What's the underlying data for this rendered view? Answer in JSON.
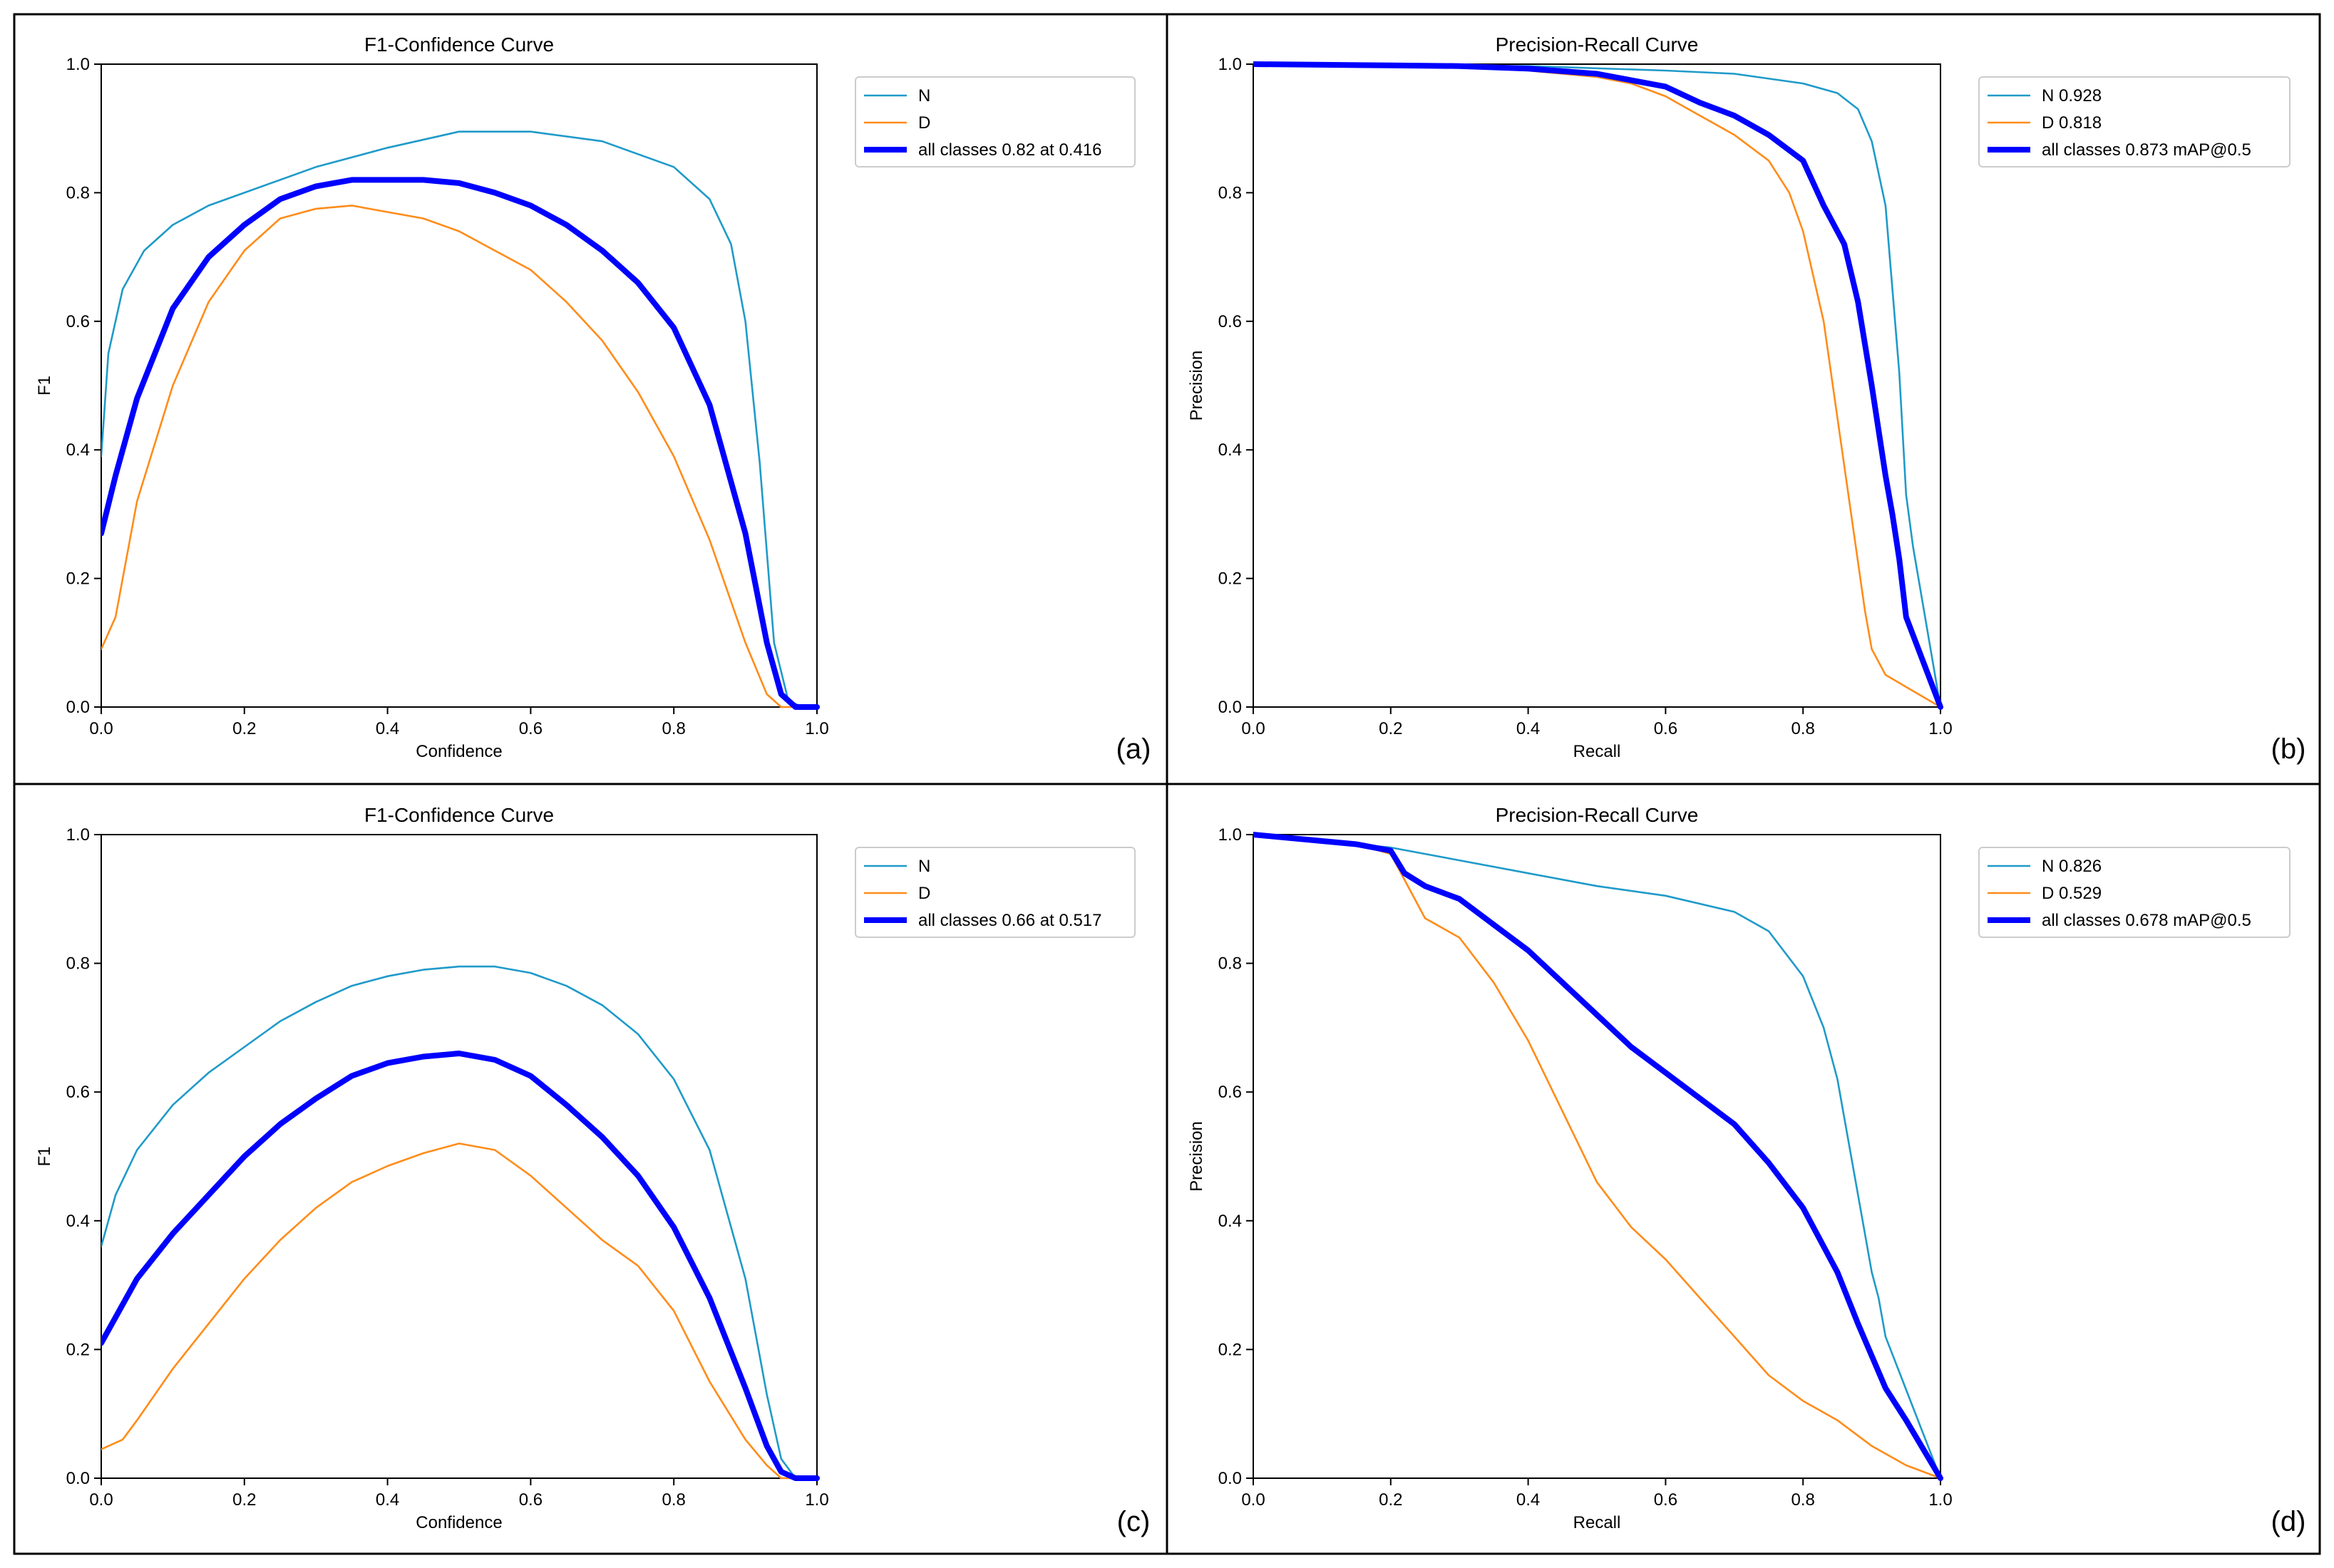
{
  "chart_data": [
    {
      "type": "line",
      "panel_label": "(a)",
      "title": "F1-Confidence Curve",
      "xlabel": "Confidence",
      "ylabel": "F1",
      "xlim": [
        0,
        1
      ],
      "ylim": [
        0,
        1
      ],
      "xticks": [
        "0.0",
        "0.2",
        "0.4",
        "0.6",
        "0.8",
        "1.0"
      ],
      "yticks": [
        "0.0",
        "0.2",
        "0.4",
        "0.6",
        "0.8",
        "1.0"
      ],
      "legend_position": "outside-right-top",
      "series": [
        {
          "name": "N",
          "color": "#1f9ac9",
          "style": "thin",
          "x": [
            0,
            0.01,
            0.03,
            0.06,
            0.1,
            0.15,
            0.2,
            0.3,
            0.4,
            0.5,
            0.6,
            0.7,
            0.8,
            0.85,
            0.88,
            0.9,
            0.92,
            0.94,
            0.96,
            0.98,
            1.0
          ],
          "y": [
            0.39,
            0.55,
            0.65,
            0.71,
            0.75,
            0.78,
            0.8,
            0.84,
            0.87,
            0.895,
            0.895,
            0.88,
            0.84,
            0.79,
            0.72,
            0.6,
            0.38,
            0.1,
            0.01,
            0.0,
            0.0
          ]
        },
        {
          "name": "D",
          "color": "#ff8c1a",
          "style": "thin",
          "x": [
            0,
            0.02,
            0.05,
            0.1,
            0.15,
            0.2,
            0.25,
            0.3,
            0.35,
            0.4,
            0.45,
            0.5,
            0.55,
            0.6,
            0.65,
            0.7,
            0.75,
            0.8,
            0.85,
            0.9,
            0.93,
            0.95,
            1.0
          ],
          "y": [
            0.09,
            0.14,
            0.32,
            0.5,
            0.63,
            0.71,
            0.76,
            0.775,
            0.78,
            0.77,
            0.76,
            0.74,
            0.71,
            0.68,
            0.63,
            0.57,
            0.49,
            0.39,
            0.26,
            0.1,
            0.02,
            0.0,
            0.0
          ]
        },
        {
          "name": "all classes 0.82 at 0.416",
          "color": "#0000ff",
          "style": "thick",
          "x": [
            0,
            0.02,
            0.05,
            0.1,
            0.15,
            0.2,
            0.25,
            0.3,
            0.35,
            0.4,
            0.45,
            0.5,
            0.55,
            0.6,
            0.65,
            0.7,
            0.75,
            0.8,
            0.85,
            0.9,
            0.93,
            0.95,
            0.97,
            1.0
          ],
          "y": [
            0.27,
            0.36,
            0.48,
            0.62,
            0.7,
            0.75,
            0.79,
            0.81,
            0.82,
            0.82,
            0.82,
            0.815,
            0.8,
            0.78,
            0.75,
            0.71,
            0.66,
            0.59,
            0.47,
            0.27,
            0.1,
            0.02,
            0.0,
            0.0
          ]
        }
      ]
    },
    {
      "type": "line",
      "panel_label": "(b)",
      "title": "Precision-Recall Curve",
      "xlabel": "Recall",
      "ylabel": "Precision",
      "xlim": [
        0,
        1
      ],
      "ylim": [
        0,
        1
      ],
      "xticks": [
        "0.0",
        "0.2",
        "0.4",
        "0.6",
        "0.8",
        "1.0"
      ],
      "yticks": [
        "0.0",
        "0.2",
        "0.4",
        "0.6",
        "0.8",
        "1.0"
      ],
      "legend_position": "outside-right-top",
      "series": [
        {
          "name": "N 0.928",
          "color": "#1f9ac9",
          "style": "thin",
          "x": [
            0,
            0.2,
            0.4,
            0.6,
            0.7,
            0.8,
            0.85,
            0.88,
            0.9,
            0.92,
            0.94,
            0.95,
            0.96,
            1.0
          ],
          "y": [
            1.0,
            0.998,
            0.997,
            0.99,
            0.985,
            0.97,
            0.955,
            0.93,
            0.88,
            0.78,
            0.52,
            0.33,
            0.25,
            0.0
          ]
        },
        {
          "name": "D 0.818",
          "color": "#ff8c1a",
          "style": "thin",
          "x": [
            0,
            0.2,
            0.3,
            0.4,
            0.5,
            0.55,
            0.6,
            0.65,
            0.7,
            0.75,
            0.78,
            0.8,
            0.83,
            0.85,
            0.87,
            0.89,
            0.9,
            0.92,
            1.0
          ],
          "y": [
            1.0,
            0.998,
            0.995,
            0.99,
            0.98,
            0.97,
            0.95,
            0.92,
            0.89,
            0.85,
            0.8,
            0.74,
            0.6,
            0.45,
            0.3,
            0.15,
            0.09,
            0.05,
            0.0
          ]
        },
        {
          "name": "all classes 0.873 mAP@0.5",
          "color": "#0000ff",
          "style": "thick",
          "x": [
            0,
            0.2,
            0.3,
            0.4,
            0.5,
            0.6,
            0.65,
            0.7,
            0.75,
            0.8,
            0.83,
            0.86,
            0.88,
            0.9,
            0.92,
            0.93,
            0.94,
            0.95,
            1.0
          ],
          "y": [
            1.0,
            0.998,
            0.997,
            0.993,
            0.985,
            0.965,
            0.94,
            0.92,
            0.89,
            0.85,
            0.78,
            0.72,
            0.63,
            0.5,
            0.36,
            0.3,
            0.23,
            0.14,
            0.0
          ]
        }
      ]
    },
    {
      "type": "line",
      "panel_label": "(c)",
      "title": "F1-Confidence Curve",
      "xlabel": "Confidence",
      "ylabel": "F1",
      "xlim": [
        0,
        1
      ],
      "ylim": [
        0,
        1
      ],
      "xticks": [
        "0.0",
        "0.2",
        "0.4",
        "0.6",
        "0.8",
        "1.0"
      ],
      "yticks": [
        "0.0",
        "0.2",
        "0.4",
        "0.6",
        "0.8",
        "1.0"
      ],
      "legend_position": "outside-right-top",
      "series": [
        {
          "name": "N",
          "color": "#1f9ac9",
          "style": "thin",
          "x": [
            0,
            0.02,
            0.05,
            0.1,
            0.15,
            0.2,
            0.25,
            0.3,
            0.35,
            0.4,
            0.45,
            0.5,
            0.55,
            0.6,
            0.65,
            0.7,
            0.75,
            0.8,
            0.85,
            0.9,
            0.93,
            0.95,
            0.97,
            1.0
          ],
          "y": [
            0.36,
            0.44,
            0.51,
            0.58,
            0.63,
            0.67,
            0.71,
            0.74,
            0.765,
            0.78,
            0.79,
            0.795,
            0.795,
            0.785,
            0.765,
            0.735,
            0.69,
            0.62,
            0.51,
            0.31,
            0.13,
            0.03,
            0.0,
            0.0
          ]
        },
        {
          "name": "D",
          "color": "#ff8c1a",
          "style": "thin",
          "x": [
            0,
            0.03,
            0.05,
            0.1,
            0.15,
            0.2,
            0.25,
            0.3,
            0.35,
            0.4,
            0.45,
            0.5,
            0.55,
            0.6,
            0.65,
            0.7,
            0.75,
            0.8,
            0.85,
            0.9,
            0.93,
            0.95,
            1.0
          ],
          "y": [
            0.045,
            0.06,
            0.09,
            0.17,
            0.24,
            0.31,
            0.37,
            0.42,
            0.46,
            0.485,
            0.505,
            0.52,
            0.51,
            0.47,
            0.42,
            0.37,
            0.33,
            0.26,
            0.15,
            0.06,
            0.02,
            0.0,
            0.0
          ]
        },
        {
          "name": "all classes 0.66 at 0.517",
          "color": "#0000ff",
          "style": "thick",
          "x": [
            0,
            0.02,
            0.05,
            0.1,
            0.15,
            0.2,
            0.25,
            0.3,
            0.35,
            0.4,
            0.45,
            0.5,
            0.55,
            0.6,
            0.65,
            0.7,
            0.75,
            0.8,
            0.85,
            0.9,
            0.93,
            0.95,
            0.97,
            1.0
          ],
          "y": [
            0.21,
            0.25,
            0.31,
            0.38,
            0.44,
            0.5,
            0.55,
            0.59,
            0.625,
            0.645,
            0.655,
            0.66,
            0.65,
            0.625,
            0.58,
            0.53,
            0.47,
            0.39,
            0.28,
            0.14,
            0.05,
            0.01,
            0.0,
            0.0
          ]
        }
      ]
    },
    {
      "type": "line",
      "panel_label": "(d)",
      "title": "Precision-Recall Curve",
      "xlabel": "Recall",
      "ylabel": "Precision",
      "xlim": [
        0,
        1
      ],
      "ylim": [
        0,
        1
      ],
      "xticks": [
        "0.0",
        "0.2",
        "0.4",
        "0.6",
        "0.8",
        "1.0"
      ],
      "yticks": [
        "0.0",
        "0.2",
        "0.4",
        "0.6",
        "0.8",
        "1.0"
      ],
      "legend_position": "outside-right-top",
      "series": [
        {
          "name": "N 0.826",
          "color": "#1f9ac9",
          "style": "thin",
          "x": [
            0,
            0.1,
            0.2,
            0.3,
            0.4,
            0.5,
            0.6,
            0.7,
            0.75,
            0.8,
            0.83,
            0.85,
            0.87,
            0.89,
            0.9,
            0.91,
            0.92,
            1.0
          ],
          "y": [
            1.0,
            0.99,
            0.98,
            0.96,
            0.94,
            0.92,
            0.905,
            0.88,
            0.85,
            0.78,
            0.7,
            0.62,
            0.5,
            0.38,
            0.32,
            0.28,
            0.22,
            0.0
          ]
        },
        {
          "name": "D 0.529",
          "color": "#ff8c1a",
          "style": "thin",
          "x": [
            0,
            0.1,
            0.15,
            0.2,
            0.22,
            0.25,
            0.3,
            0.35,
            0.4,
            0.45,
            0.5,
            0.55,
            0.6,
            0.65,
            0.7,
            0.75,
            0.8,
            0.85,
            0.9,
            0.95,
            1.0
          ],
          "y": [
            1.0,
            0.99,
            0.985,
            0.97,
            0.93,
            0.87,
            0.84,
            0.77,
            0.68,
            0.57,
            0.46,
            0.39,
            0.34,
            0.28,
            0.22,
            0.16,
            0.12,
            0.09,
            0.05,
            0.02,
            0.0
          ]
        },
        {
          "name": "all classes 0.678 mAP@0.5",
          "color": "#0000ff",
          "style": "thick",
          "x": [
            0,
            0.1,
            0.15,
            0.2,
            0.22,
            0.25,
            0.3,
            0.35,
            0.4,
            0.45,
            0.5,
            0.55,
            0.6,
            0.65,
            0.7,
            0.75,
            0.8,
            0.85,
            0.88,
            0.9,
            0.92,
            0.95,
            1.0
          ],
          "y": [
            1.0,
            0.99,
            0.985,
            0.975,
            0.94,
            0.92,
            0.9,
            0.86,
            0.82,
            0.77,
            0.72,
            0.67,
            0.63,
            0.59,
            0.55,
            0.49,
            0.42,
            0.32,
            0.24,
            0.19,
            0.14,
            0.09,
            0.0
          ]
        }
      ]
    }
  ]
}
